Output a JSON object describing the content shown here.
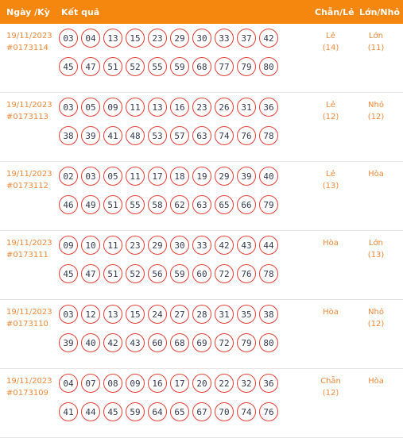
{
  "header": {
    "date_label": "Ngày /Kỳ",
    "result_label": "Kết quả",
    "even_odd_label": "Chẵn/Lẻ",
    "big_small_label": "Lớn/Nhỏ"
  },
  "rows": [
    {
      "date": "19/11/2023",
      "period": "#0173114",
      "balls_top": [
        "03",
        "04",
        "13",
        "15",
        "23",
        "29",
        "30",
        "33",
        "37",
        "42"
      ],
      "balls_bottom": [
        "45",
        "47",
        "51",
        "52",
        "55",
        "59",
        "68",
        "77",
        "79",
        "80"
      ],
      "even_odd": "Lẻ",
      "even_odd_count": "(14)",
      "big_small": "Lớn",
      "big_small_count": "(11)"
    },
    {
      "date": "19/11/2023",
      "period": "#0173113",
      "balls_top": [
        "03",
        "05",
        "09",
        "11",
        "13",
        "16",
        "23",
        "26",
        "31",
        "36"
      ],
      "balls_bottom": [
        "38",
        "39",
        "41",
        "48",
        "53",
        "57",
        "63",
        "74",
        "76",
        "78"
      ],
      "even_odd": "Lẻ",
      "even_odd_count": "(12)",
      "big_small": "Nhỏ",
      "big_small_count": "(12)"
    },
    {
      "date": "19/11/2023",
      "period": "#0173112",
      "balls_top": [
        "02",
        "03",
        "05",
        "11",
        "17",
        "18",
        "19",
        "29",
        "39",
        "40"
      ],
      "balls_bottom": [
        "46",
        "49",
        "51",
        "55",
        "58",
        "62",
        "63",
        "65",
        "66",
        "79"
      ],
      "even_odd": "Lẻ",
      "even_odd_count": "(13)",
      "big_small": "Hòa",
      "big_small_count": ""
    },
    {
      "date": "19/11/2023",
      "period": "#0173111",
      "balls_top": [
        "09",
        "10",
        "11",
        "23",
        "29",
        "30",
        "33",
        "42",
        "43",
        "44"
      ],
      "balls_bottom": [
        "45",
        "47",
        "51",
        "52",
        "56",
        "59",
        "60",
        "72",
        "76",
        "78"
      ],
      "even_odd": "Hòa",
      "even_odd_count": "",
      "big_small": "Lớn",
      "big_small_count": "(13)"
    },
    {
      "date": "19/11/2023",
      "period": "#0173110",
      "balls_top": [
        "03",
        "12",
        "13",
        "15",
        "24",
        "27",
        "28",
        "31",
        "35",
        "38"
      ],
      "balls_bottom": [
        "39",
        "40",
        "42",
        "43",
        "60",
        "68",
        "69",
        "72",
        "79",
        "80"
      ],
      "even_odd": "Hòa",
      "even_odd_count": "",
      "big_small": "Nhỏ",
      "big_small_count": "(12)"
    },
    {
      "date": "19/11/2023",
      "period": "#0173109",
      "balls_top": [
        "04",
        "07",
        "08",
        "09",
        "16",
        "17",
        "20",
        "22",
        "32",
        "36"
      ],
      "balls_bottom": [
        "41",
        "44",
        "45",
        "59",
        "64",
        "65",
        "67",
        "70",
        "74",
        "76"
      ],
      "even_odd": "Chẵn",
      "even_odd_count": "(12)",
      "big_small": "Hòa",
      "big_small_count": ""
    }
  ],
  "colors": {
    "header_bg": "#f5860e",
    "accent_text": "#f0893a",
    "ball_border": "#e53e34",
    "ball_text": "#333a4f"
  }
}
